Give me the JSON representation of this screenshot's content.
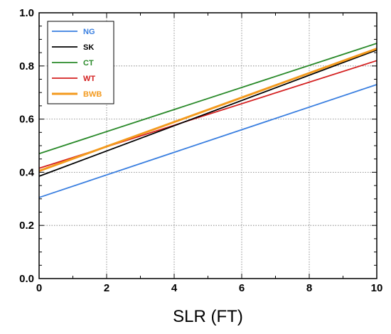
{
  "chart_data": {
    "type": "line",
    "xlabel": "SLR (FT)",
    "ylabel": "",
    "xlim": [
      0,
      10
    ],
    "ylim": [
      0,
      1.0
    ],
    "xticks": [
      "0",
      "2",
      "4",
      "6",
      "8",
      "10"
    ],
    "yticks": [
      "0.0",
      "0.2",
      "0.4",
      "0.6",
      "0.8",
      "1.0"
    ],
    "grid": true,
    "legend_position": "top-left",
    "series": [
      {
        "name": "NG",
        "color": "#3a7fe0",
        "x": [
          0,
          10
        ],
        "y": [
          0.305,
          0.73
        ]
      },
      {
        "name": "SK",
        "color": "#000000",
        "x": [
          0,
          10
        ],
        "y": [
          0.385,
          0.86
        ]
      },
      {
        "name": "CT",
        "color": "#2a8a2a",
        "x": [
          0,
          10
        ],
        "y": [
          0.47,
          0.885
        ]
      },
      {
        "name": "WT",
        "color": "#d42020",
        "x": [
          0,
          10
        ],
        "y": [
          0.415,
          0.82
        ]
      },
      {
        "name": "BWB",
        "color": "#f39a1e",
        "x": [
          0,
          10
        ],
        "y": [
          0.405,
          0.865
        ]
      }
    ]
  }
}
